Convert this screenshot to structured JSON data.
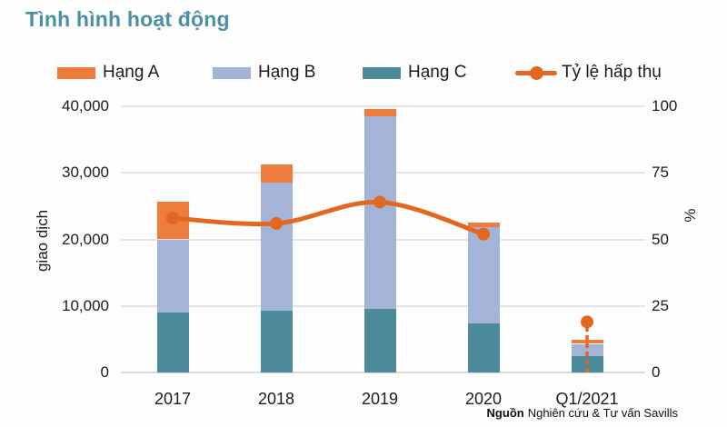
{
  "title": "Tình hình hoạt động",
  "legend": [
    {
      "label": "Hạng A",
      "color": "#EE7D3B",
      "type": "bar"
    },
    {
      "label": "Hạng B",
      "color": "#A3B4D6",
      "type": "bar"
    },
    {
      "label": "Hạng C",
      "color": "#4D8B9B",
      "type": "bar"
    },
    {
      "label": "Tỷ lệ hấp thụ",
      "color": "#E4671F",
      "type": "line"
    }
  ],
  "source": {
    "prefix": "Nguồn",
    "text": "Nghiên cứu & Tư vấn Savills"
  },
  "colors": {
    "title": "#4B8FA3",
    "grid": "#E4E4E8",
    "axis": "#DADADF",
    "text": "#1C1C1C",
    "background": "#FDFDFD"
  },
  "chart_data": {
    "type": "bar",
    "subtype": "stacked-bars-with-line",
    "categories": [
      "2017",
      "2018",
      "2019",
      "2020",
      "Q1/2021"
    ],
    "series": [
      {
        "name": "Hạng C",
        "type": "bar",
        "color": "#4D8B9B",
        "axis": "left",
        "values": [
          9000,
          9300,
          9600,
          7400,
          2400
        ]
      },
      {
        "name": "Hạng B",
        "type": "bar",
        "color": "#A3B4D6",
        "axis": "left",
        "values": [
          11000,
          19200,
          28900,
          14400,
          1900
        ]
      },
      {
        "name": "Hạng A",
        "type": "bar",
        "color": "#EE7D3B",
        "axis": "left",
        "values": [
          5700,
          2700,
          1100,
          700,
          600
        ]
      },
      {
        "name": "Tỷ lệ hấp thụ",
        "type": "line",
        "color": "#E4671F",
        "axis": "right",
        "values": [
          58,
          56,
          64,
          52,
          19
        ],
        "solid_points": 4,
        "detached_last_point_dashed_stem": true
      }
    ],
    "title": "Tình hình hoạt động",
    "xlabel": "",
    "ylabel_left": "giao dịch",
    "ylabel_right": "%",
    "ylim_left": [
      0,
      40000
    ],
    "ylim_right": [
      0,
      100
    ],
    "yticks_left": [
      "0",
      "10,000",
      "20,000",
      "30,000",
      "40,000"
    ],
    "yticks_right": [
      "0",
      "25",
      "50",
      "75",
      "100"
    ],
    "grid": "horizontal",
    "legend_position": "top"
  }
}
